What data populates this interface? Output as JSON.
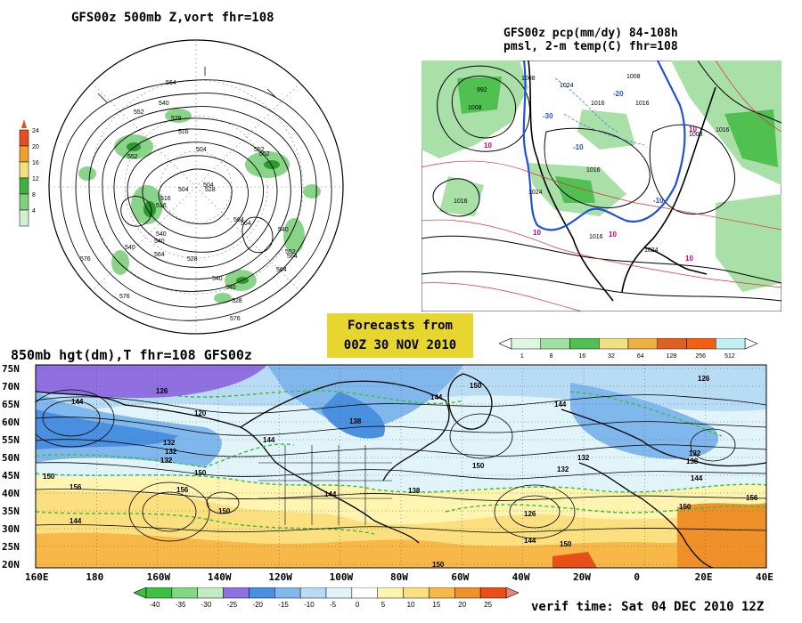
{
  "panels": {
    "hemisphere": {
      "title": "GFS00z   500mb Z,vort    fhr=108",
      "contour_labels": [
        "564",
        "552",
        "540",
        "528",
        "516",
        "504",
        "564",
        "552",
        "576",
        "564",
        "552",
        "540",
        "528",
        "516",
        "576",
        "540",
        "552",
        "564",
        "540",
        "528",
        "576",
        "564",
        "528",
        "504",
        "540",
        "552",
        "516",
        "504",
        "540",
        "564",
        "540"
      ],
      "colorbar": {
        "labels": [
          "24",
          "20",
          "16",
          "12",
          "8",
          "4"
        ],
        "colors": [
          "#e05020",
          "#f0a030",
          "#f0e080",
          "#40b040",
          "#80d080",
          "#d0f0d0"
        ]
      }
    },
    "precip": {
      "title_line1": "GFS00z pcp(mm/dy) 84-108h",
      "title_line2": "pmsl, 2-m temp(C)  fhr=108",
      "contour_labels": [
        "992",
        "1008",
        "1024",
        "1016",
        "1008",
        "1016",
        "1024",
        "1016",
        "1008",
        "1016",
        "1024",
        "1016",
        "1008",
        "1016"
      ],
      "temp_labels": [
        "-20",
        "-10",
        "-30",
        "10",
        "10",
        "10",
        "10",
        "10",
        "-10"
      ],
      "colorbar": {
        "labels": [
          "1",
          "8",
          "16",
          "32",
          "64",
          "128",
          "256",
          "512"
        ],
        "colors": [
          "#e0f5e0",
          "#a0e0a0",
          "#50c050",
          "#f0e080",
          "#f0b040",
          "#e06020",
          "#f06010",
          "#c0f0f0"
        ]
      }
    },
    "forecast_banner": {
      "line1": "Forecasts from",
      "line2": "00Z 30 NOV 2010",
      "color": "#e8d630"
    },
    "h850": {
      "title": "850mb hgt(dm),T  fhr=108 GFS00z",
      "lat_labels": [
        "75N",
        "70N",
        "65N",
        "60N",
        "55N",
        "50N",
        "45N",
        "40N",
        "35N",
        "30N",
        "25N",
        "20N"
      ],
      "lon_labels": [
        "160E",
        "180",
        "160W",
        "140W",
        "120W",
        "100W",
        "80W",
        "60W",
        "40W",
        "20W",
        "0",
        "20E",
        "40E"
      ],
      "contour_labels": [
        "144",
        "126",
        "120",
        "132",
        "132",
        "150",
        "156",
        "150",
        "144",
        "138",
        "150",
        "144",
        "138",
        "156",
        "150",
        "144",
        "132",
        "150",
        "126",
        "144",
        "150",
        "144",
        "132",
        "132",
        "132",
        "138",
        "144",
        "156",
        "150",
        "150",
        "126",
        "144"
      ],
      "colorbar": {
        "labels": [
          "-40",
          "-35",
          "-30",
          "-25",
          "-20",
          "-15",
          "-10",
          "-5",
          "0",
          "5",
          "10",
          "15",
          "20",
          "25"
        ],
        "colors": [
          "#40c040",
          "#80d880",
          "#c0ecc0",
          "#9070e0",
          "#4a90e0",
          "#80b8ee",
          "#b8dcf4",
          "#e0f4fa",
          "#ffffff",
          "#fff4b0",
          "#fce080",
          "#f8b848",
          "#f09028",
          "#e85018"
        ]
      },
      "verif_text": "verif time: Sat 04 DEC 2010 12Z"
    }
  }
}
